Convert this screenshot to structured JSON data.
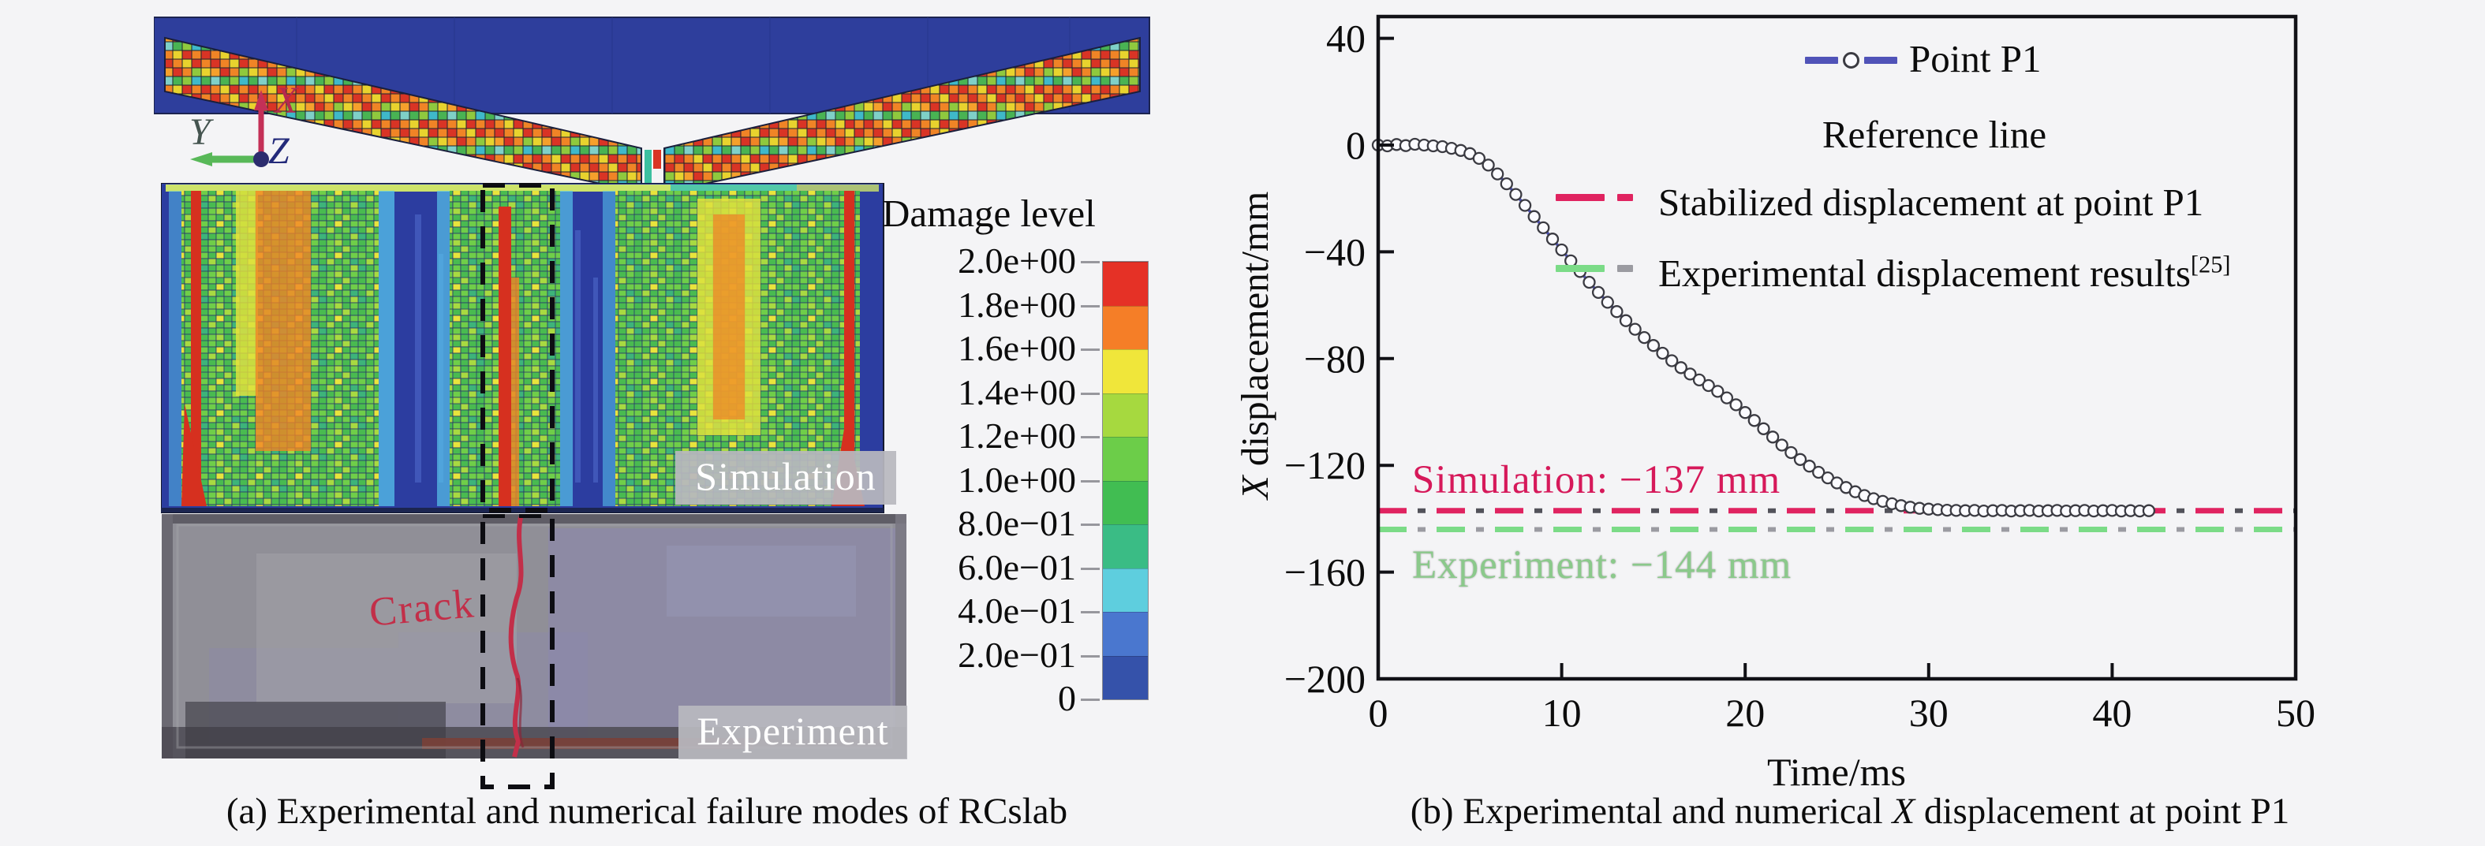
{
  "figure": {
    "background": "#f4f4f6",
    "panel_a": {
      "caption": "(a) Experimental and numerical failure modes of RCslab",
      "triad": {
        "x": "X",
        "y": "Y",
        "z": "Z"
      },
      "overlay_labels": {
        "simulation": "Simulation",
        "experiment": "Experiment",
        "crack": "Crack"
      },
      "colorbar": {
        "title": "Damage level",
        "tick_labels": [
          "2.0e+00",
          "1.8e+00",
          "1.6e+00",
          "1.4e+00",
          "1.2e+00",
          "1.0e+00",
          "8.0e−01",
          "6.0e−01",
          "4.0e−01",
          "2.0e−01",
          "0"
        ],
        "segment_colors_top_to_bottom": [
          "#e53126",
          "#f57e27",
          "#f0e63a",
          "#a6d93f",
          "#6ccd49",
          "#41bd52",
          "#3abc85",
          "#5ecede",
          "#4a77cf",
          "#3552aa"
        ]
      }
    },
    "panel_b": {
      "caption": {
        "prefix": "(b) Experimental and numerical ",
        "italic": "X",
        "suffix": " displacement at point P1"
      },
      "axes": {
        "ylabel_italic": "X",
        "ylabel_rest": " displacement/mm"
      }
    }
  },
  "chart_data": {
    "type": "line",
    "title": "",
    "xlabel": "Time/ms",
    "ylabel": "X displacement/mm",
    "xlim": [
      0,
      50
    ],
    "ylim": [
      -200,
      40
    ],
    "grid": false,
    "legend_position": "top-center-inside",
    "xticks": [
      "0",
      "10",
      "20",
      "30",
      "40",
      "50"
    ],
    "xtick_values": [
      0,
      10,
      20,
      30,
      40,
      50
    ],
    "yticks": [
      "40",
      "0",
      "−40",
      "−80",
      "−120",
      "−160",
      "−200"
    ],
    "ytick_values": [
      40,
      0,
      -40,
      -80,
      -120,
      -160,
      -200
    ],
    "legend": {
      "series_label": "Point P1",
      "reference_title": "Reference line",
      "entries": [
        {
          "label": "Stabilized displacement at point P1",
          "color": "#e02360",
          "style": "dash-dot"
        },
        {
          "label": "Experimental displacement results",
          "sup": "[25]",
          "color": "#7bdb87",
          "style": "dash-dot"
        }
      ]
    },
    "annotations": [
      {
        "label": "Simulation: −137 mm",
        "color": "#d6195a",
        "y": -137
      },
      {
        "label": "Experiment: −144 mm",
        "color": "#8bc98b",
        "y": -144
      }
    ],
    "reference_lines": [
      {
        "name": "Stabilized displacement at point P1",
        "y": -137,
        "color": "#e02360",
        "secondary_color": "#52525a"
      },
      {
        "name": "Experimental displacement results [25]",
        "y": -144,
        "color": "#7bdb87",
        "secondary_color": "#9b9ba1"
      }
    ],
    "series": [
      {
        "name": "Point P1",
        "color": "#5053b8",
        "marker": "open-circle",
        "marker_edge": "#3b3b42",
        "x": [
          0,
          0.5,
          1,
          1.5,
          2,
          2.5,
          3,
          3.5,
          4,
          4.5,
          5,
          5.5,
          6,
          6.5,
          7,
          7.5,
          8,
          8.5,
          9,
          9.5,
          10,
          10.5,
          11,
          11.5,
          12,
          12.5,
          13,
          13.5,
          14,
          14.5,
          15,
          15.5,
          16,
          16.5,
          17,
          17.5,
          18,
          18.5,
          19,
          19.5,
          20,
          20.5,
          21,
          21.5,
          22,
          22.5,
          23,
          23.5,
          24,
          24.5,
          25,
          25.5,
          26,
          26.5,
          27,
          27.5,
          28,
          28.5,
          29,
          29.5,
          30,
          30.5,
          31,
          31.5,
          32,
          32.5,
          33,
          33.5,
          34,
          34.5,
          35,
          35.5,
          36,
          36.5,
          37,
          37.5,
          38,
          38.5,
          39,
          39.5,
          40,
          40.5,
          41,
          41.5,
          42
        ],
        "y": [
          0,
          -0.3,
          0.2,
          -0.2,
          0.3,
          0,
          -0.3,
          -0.6,
          -1.2,
          -2,
          -3.2,
          -5,
          -7.5,
          -10.8,
          -14.5,
          -18.5,
          -22.6,
          -26.8,
          -31,
          -35.2,
          -39.3,
          -43.4,
          -47.4,
          -51.4,
          -55.2,
          -58.9,
          -62.4,
          -65.8,
          -69,
          -72.1,
          -75.1,
          -78,
          -80.8,
          -83.4,
          -85.8,
          -88,
          -90.1,
          -92.3,
          -94.7,
          -97.3,
          -100.2,
          -103.2,
          -106.3,
          -109.4,
          -112.4,
          -115.2,
          -117.8,
          -120.3,
          -122.6,
          -124.7,
          -126.6,
          -128.3,
          -129.9,
          -131.3,
          -132.5,
          -133.5,
          -134.4,
          -135.1,
          -135.7,
          -136.1,
          -136.4,
          -136.6,
          -136.8,
          -136.9,
          -137,
          -136.9,
          -137.1,
          -137,
          -136.9,
          -137.1,
          -137,
          -136.9,
          -137.1,
          -137,
          -136.9,
          -137.1,
          -137,
          -136.9,
          -137.1,
          -137,
          -136.9,
          -137.1,
          -137,
          -137.1,
          -137
        ]
      }
    ]
  }
}
